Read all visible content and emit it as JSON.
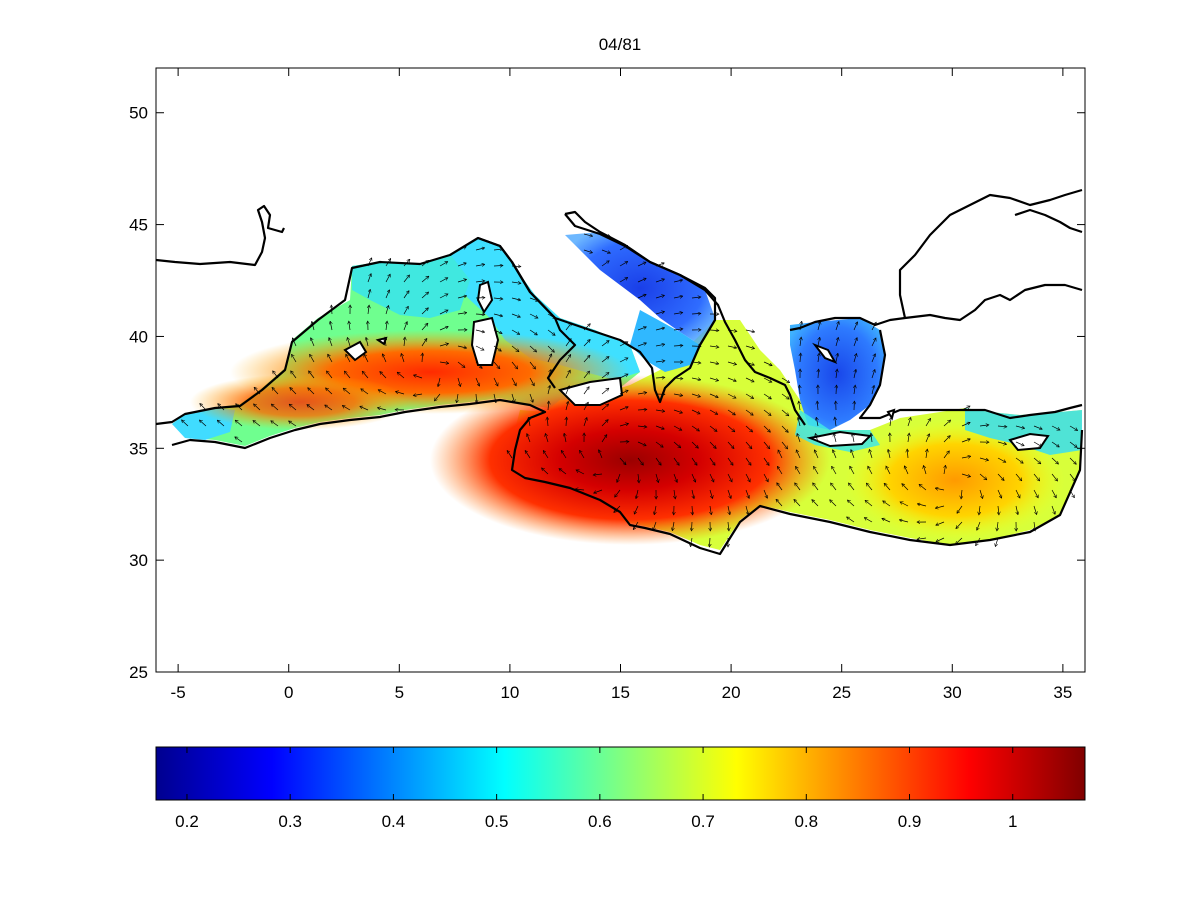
{
  "figure": {
    "title": "04/81"
  },
  "map": {
    "type": "heatmap",
    "subtype": "vector field over Mediterranean Sea",
    "xlim": [
      -6,
      36
    ],
    "ylim": [
      25,
      52
    ],
    "xticks": [
      -5,
      0,
      5,
      10,
      15,
      20,
      25,
      30,
      35
    ],
    "yticks": [
      25,
      30,
      35,
      40,
      45,
      50
    ],
    "xtick_labels": [
      "-5",
      "0",
      "5",
      "10",
      "15",
      "20",
      "25",
      "30",
      "35"
    ],
    "ytick_labels": [
      "25",
      "30",
      "35",
      "40",
      "45",
      "50"
    ],
    "grid": false,
    "colormap": "jet"
  },
  "colorbar": {
    "range": [
      0.17,
      1.07
    ],
    "ticks": [
      0.2,
      0.3,
      0.4,
      0.5,
      0.6,
      0.7,
      0.8,
      0.9,
      1.0
    ],
    "tick_labels": [
      "0.2",
      "0.3",
      "0.4",
      "0.5",
      "0.6",
      "0.7",
      "0.8",
      "0.9",
      "1"
    ],
    "colors": [
      "#00008f",
      "#0000ff",
      "#0080ff",
      "#00ffff",
      "#80ff80",
      "#ffff00",
      "#ff8000",
      "#ff0000",
      "#800000"
    ]
  },
  "chart_data": {
    "type": "heatmap",
    "title": "04/81",
    "xlabel": "",
    "ylabel": "",
    "xlim": [
      -6,
      36
    ],
    "ylim": [
      25,
      52
    ],
    "value_range": [
      0.17,
      1.07
    ],
    "highs": [
      {
        "lon": 14.5,
        "lat": 34.5,
        "value": 1.05
      },
      {
        "lon": 6.5,
        "lat": 38.5,
        "value": 0.95
      },
      {
        "lon": 30.0,
        "lat": 33.5,
        "value": 0.8
      }
    ],
    "lows": [
      {
        "lon": 15.5,
        "lat": 43.5,
        "value": 0.3
      },
      {
        "lon": 25.0,
        "lat": 39.5,
        "value": 0.3
      }
    ]
  }
}
